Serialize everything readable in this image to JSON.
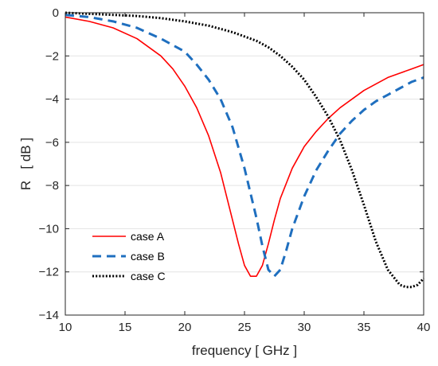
{
  "chart_data": {
    "type": "line",
    "title": "",
    "xlabel": "frequency [ GHz ]",
    "ylabel": "R   [ dB ]",
    "xlim": [
      10,
      40
    ],
    "ylim": [
      -14,
      0
    ],
    "xticks": [
      10,
      15,
      20,
      25,
      30,
      35,
      40
    ],
    "yticks": [
      0,
      -2,
      -4,
      -6,
      -8,
      -10,
      -12,
      -14
    ],
    "grid": true,
    "legend_position": "bottom-left",
    "series": [
      {
        "name": "case A",
        "color": "#ff0000",
        "style": "solid",
        "x": [
          10,
          12,
          14,
          16,
          18,
          19,
          20,
          21,
          22,
          23,
          24,
          24.5,
          25,
          25.5,
          26,
          26.5,
          27,
          27.5,
          28,
          29,
          30,
          31,
          32,
          33,
          34,
          35,
          36,
          37,
          38,
          39,
          40
        ],
        "y": [
          -0.2,
          -0.4,
          -0.7,
          -1.2,
          -2.0,
          -2.6,
          -3.4,
          -4.4,
          -5.7,
          -7.4,
          -9.6,
          -10.7,
          -11.7,
          -12.2,
          -12.2,
          -11.7,
          -10.7,
          -9.6,
          -8.6,
          -7.2,
          -6.2,
          -5.5,
          -4.9,
          -4.4,
          -4.0,
          -3.6,
          -3.3,
          -3.0,
          -2.8,
          -2.6,
          -2.4
        ]
      },
      {
        "name": "case B",
        "color": "#1f6fbf",
        "style": "dashed",
        "x": [
          10,
          12,
          14,
          16,
          18,
          20,
          21,
          22,
          23,
          24,
          25,
          26,
          26.5,
          27,
          27.5,
          28,
          28.5,
          29,
          30,
          31,
          32,
          33,
          34,
          35,
          36,
          37,
          38,
          39,
          40
        ],
        "y": [
          -0.1,
          -0.2,
          -0.4,
          -0.7,
          -1.2,
          -1.8,
          -2.4,
          -3.1,
          -4.0,
          -5.3,
          -7.2,
          -9.5,
          -10.8,
          -11.9,
          -12.2,
          -11.9,
          -11.0,
          -10.0,
          -8.5,
          -7.3,
          -6.4,
          -5.6,
          -5.0,
          -4.5,
          -4.1,
          -3.8,
          -3.5,
          -3.2,
          -3.0
        ]
      },
      {
        "name": "case C",
        "color": "#000000",
        "style": "dotted",
        "x": [
          10,
          12,
          14,
          16,
          18,
          20,
          22,
          24,
          25,
          26,
          27,
          28,
          29,
          30,
          31,
          32,
          33,
          34,
          35,
          36,
          37,
          38,
          38.5,
          39,
          39.5,
          40
        ],
        "y": [
          0.0,
          -0.05,
          -0.1,
          -0.15,
          -0.25,
          -0.4,
          -0.6,
          -0.9,
          -1.1,
          -1.3,
          -1.6,
          -2.0,
          -2.5,
          -3.1,
          -3.9,
          -4.8,
          -5.9,
          -7.3,
          -8.9,
          -10.6,
          -11.9,
          -12.6,
          -12.7,
          -12.7,
          -12.6,
          -12.3
        ]
      }
    ]
  }
}
